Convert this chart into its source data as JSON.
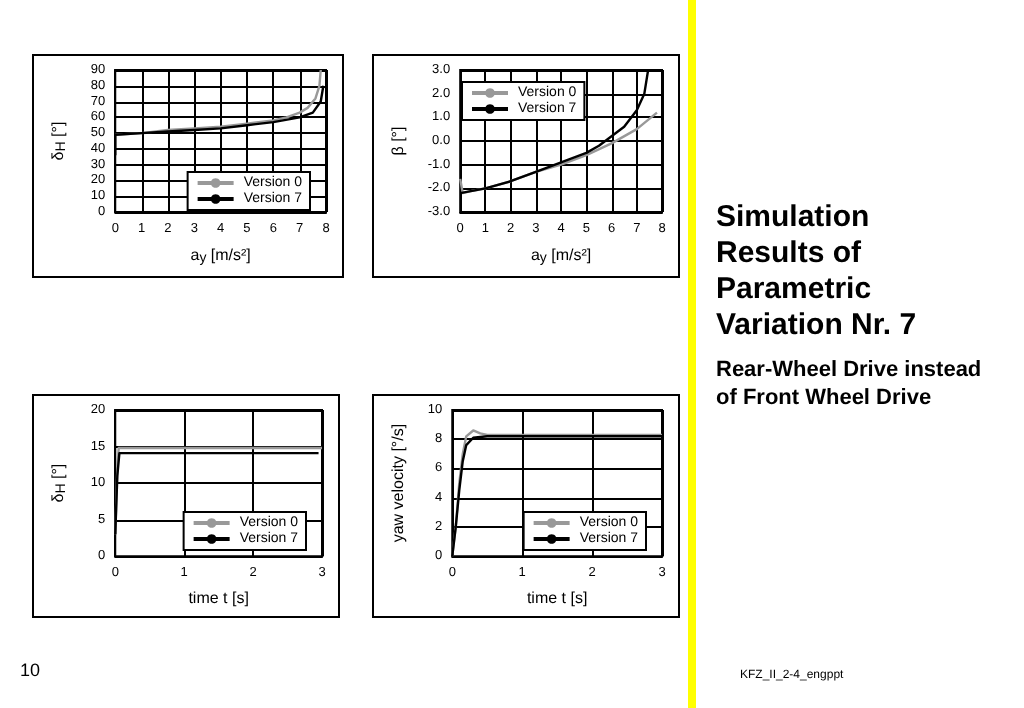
{
  "chart_data": [
    {
      "type": "line",
      "xlabel": "a$_{y}$ [m/s²]",
      "ylabel": "δ$_{H}$ [°]",
      "xlim": [
        0,
        8
      ],
      "xticks": [
        0,
        1,
        2,
        3,
        4,
        5,
        6,
        7,
        8
      ],
      "ylim": [
        0,
        90
      ],
      "yticks": [
        0,
        10,
        20,
        30,
        40,
        50,
        60,
        70,
        80,
        90
      ],
      "grid": true,
      "legend": "bottom right",
      "marker": "none",
      "line_style": "solid",
      "series": [
        {
          "name": "Version 0",
          "color": "#999999",
          "x": [
            0,
            1,
            2,
            3,
            4,
            5,
            6,
            6.5,
            7,
            7.3,
            7.6,
            7.75,
            7.8
          ],
          "values": [
            49,
            50,
            52,
            53,
            54,
            56,
            58,
            60,
            63,
            66,
            72,
            80,
            90
          ]
        },
        {
          "name": "Version 7",
          "color": "#000000",
          "x": [
            0,
            0,
            1,
            2,
            3,
            4,
            5,
            6,
            7,
            7.5,
            7.8,
            7.9
          ],
          "values": [
            36,
            49,
            50,
            51,
            52,
            53,
            55,
            57,
            60,
            63,
            70,
            80
          ]
        }
      ]
    },
    {
      "type": "line",
      "xlabel": "a$_{y}$ [m/s²]",
      "ylabel": "β [°]",
      "xlim": [
        0,
        8
      ],
      "xticks": [
        0,
        1,
        2,
        3,
        4,
        5,
        6,
        7,
        8
      ],
      "ylim": [
        -3,
        3
      ],
      "yticks": [
        {
          "value": -3,
          "label": "-3.0"
        },
        {
          "value": -2,
          "label": "-2.0"
        },
        {
          "value": -1,
          "label": "-1.0"
        },
        {
          "value": 0,
          "label": "0.0"
        },
        {
          "value": 1,
          "label": "1.0"
        },
        {
          "value": 2,
          "label": "2.0"
        },
        {
          "value": 3,
          "label": "3.0"
        }
      ],
      "grid": true,
      "legend": "top left",
      "marker": "none",
      "line_style": "solid",
      "series": [
        {
          "name": "Version 0",
          "color": "#999999",
          "x": [
            0,
            0.1,
            0.5,
            1,
            2,
            3,
            4,
            5,
            6,
            7,
            7.8
          ],
          "values": [
            -1.6,
            -2.2,
            -2.1,
            -2,
            -1.7,
            -1.3,
            -1,
            -0.6,
            -0.1,
            0.5,
            1.2
          ]
        },
        {
          "name": "Version 7",
          "color": "#000000",
          "x": [
            0,
            1,
            2,
            3,
            4,
            5,
            5.5,
            6,
            6.5,
            7,
            7.3,
            7.45
          ],
          "values": [
            -2.2,
            -2,
            -1.7,
            -1.3,
            -0.9,
            -0.5,
            -0.2,
            0.2,
            0.6,
            1.3,
            2,
            3
          ]
        }
      ]
    },
    {
      "type": "line",
      "xlabel": "time t [s]",
      "ylabel": "δ$_{H}$ [°]",
      "xlim": [
        0,
        3
      ],
      "xticks": [
        0,
        1,
        2,
        3
      ],
      "ylim": [
        0,
        20
      ],
      "yticks": [
        0,
        5,
        10,
        15,
        20
      ],
      "grid": true,
      "legend": "bottom right",
      "marker": "none",
      "line_style": "solid",
      "series": [
        {
          "name": "Version 0",
          "color": "#999999",
          "x": [
            0,
            0.03,
            0.05,
            3
          ],
          "values": [
            3,
            12,
            14.8,
            14.8
          ]
        },
        {
          "name": "Version 7",
          "color": "#000000",
          "x": [
            0,
            0.03,
            0.06,
            2.95
          ],
          "values": [
            3,
            11,
            14.1,
            14.1
          ]
        }
      ]
    },
    {
      "type": "line",
      "xlabel": "time t [s]",
      "ylabel": "yaw velocity [°/s]",
      "xlim": [
        0,
        3
      ],
      "xticks": [
        0,
        1,
        2,
        3
      ],
      "ylim": [
        0,
        10
      ],
      "yticks": [
        0,
        2,
        4,
        6,
        8,
        10
      ],
      "grid": true,
      "legend": "bottom right",
      "marker": "none",
      "line_style": "solid",
      "series": [
        {
          "name": "Version 0",
          "color": "#999999",
          "x": [
            0,
            0.05,
            0.1,
            0.15,
            0.2,
            0.3,
            0.4,
            0.5,
            3
          ],
          "values": [
            0,
            2,
            5,
            7,
            8.2,
            8.6,
            8.4,
            8.3,
            8.3
          ]
        },
        {
          "name": "Version 7",
          "color": "#000000",
          "x": [
            0,
            0.05,
            0.1,
            0.15,
            0.2,
            0.3,
            0.5,
            3
          ],
          "values": [
            0,
            2,
            4.5,
            6.5,
            7.6,
            8.1,
            8.2,
            8.2
          ]
        }
      ]
    },
    {
      "type": "other",
      "title": "Simulation Results of Parametric Variation Nr. 7",
      "subtitle": "Rear-Wheel Drive instead of Front Wheel Drive",
      "annotations": [
        "10",
        "KFZ_II_2-4_engppt"
      ]
    }
  ]
}
